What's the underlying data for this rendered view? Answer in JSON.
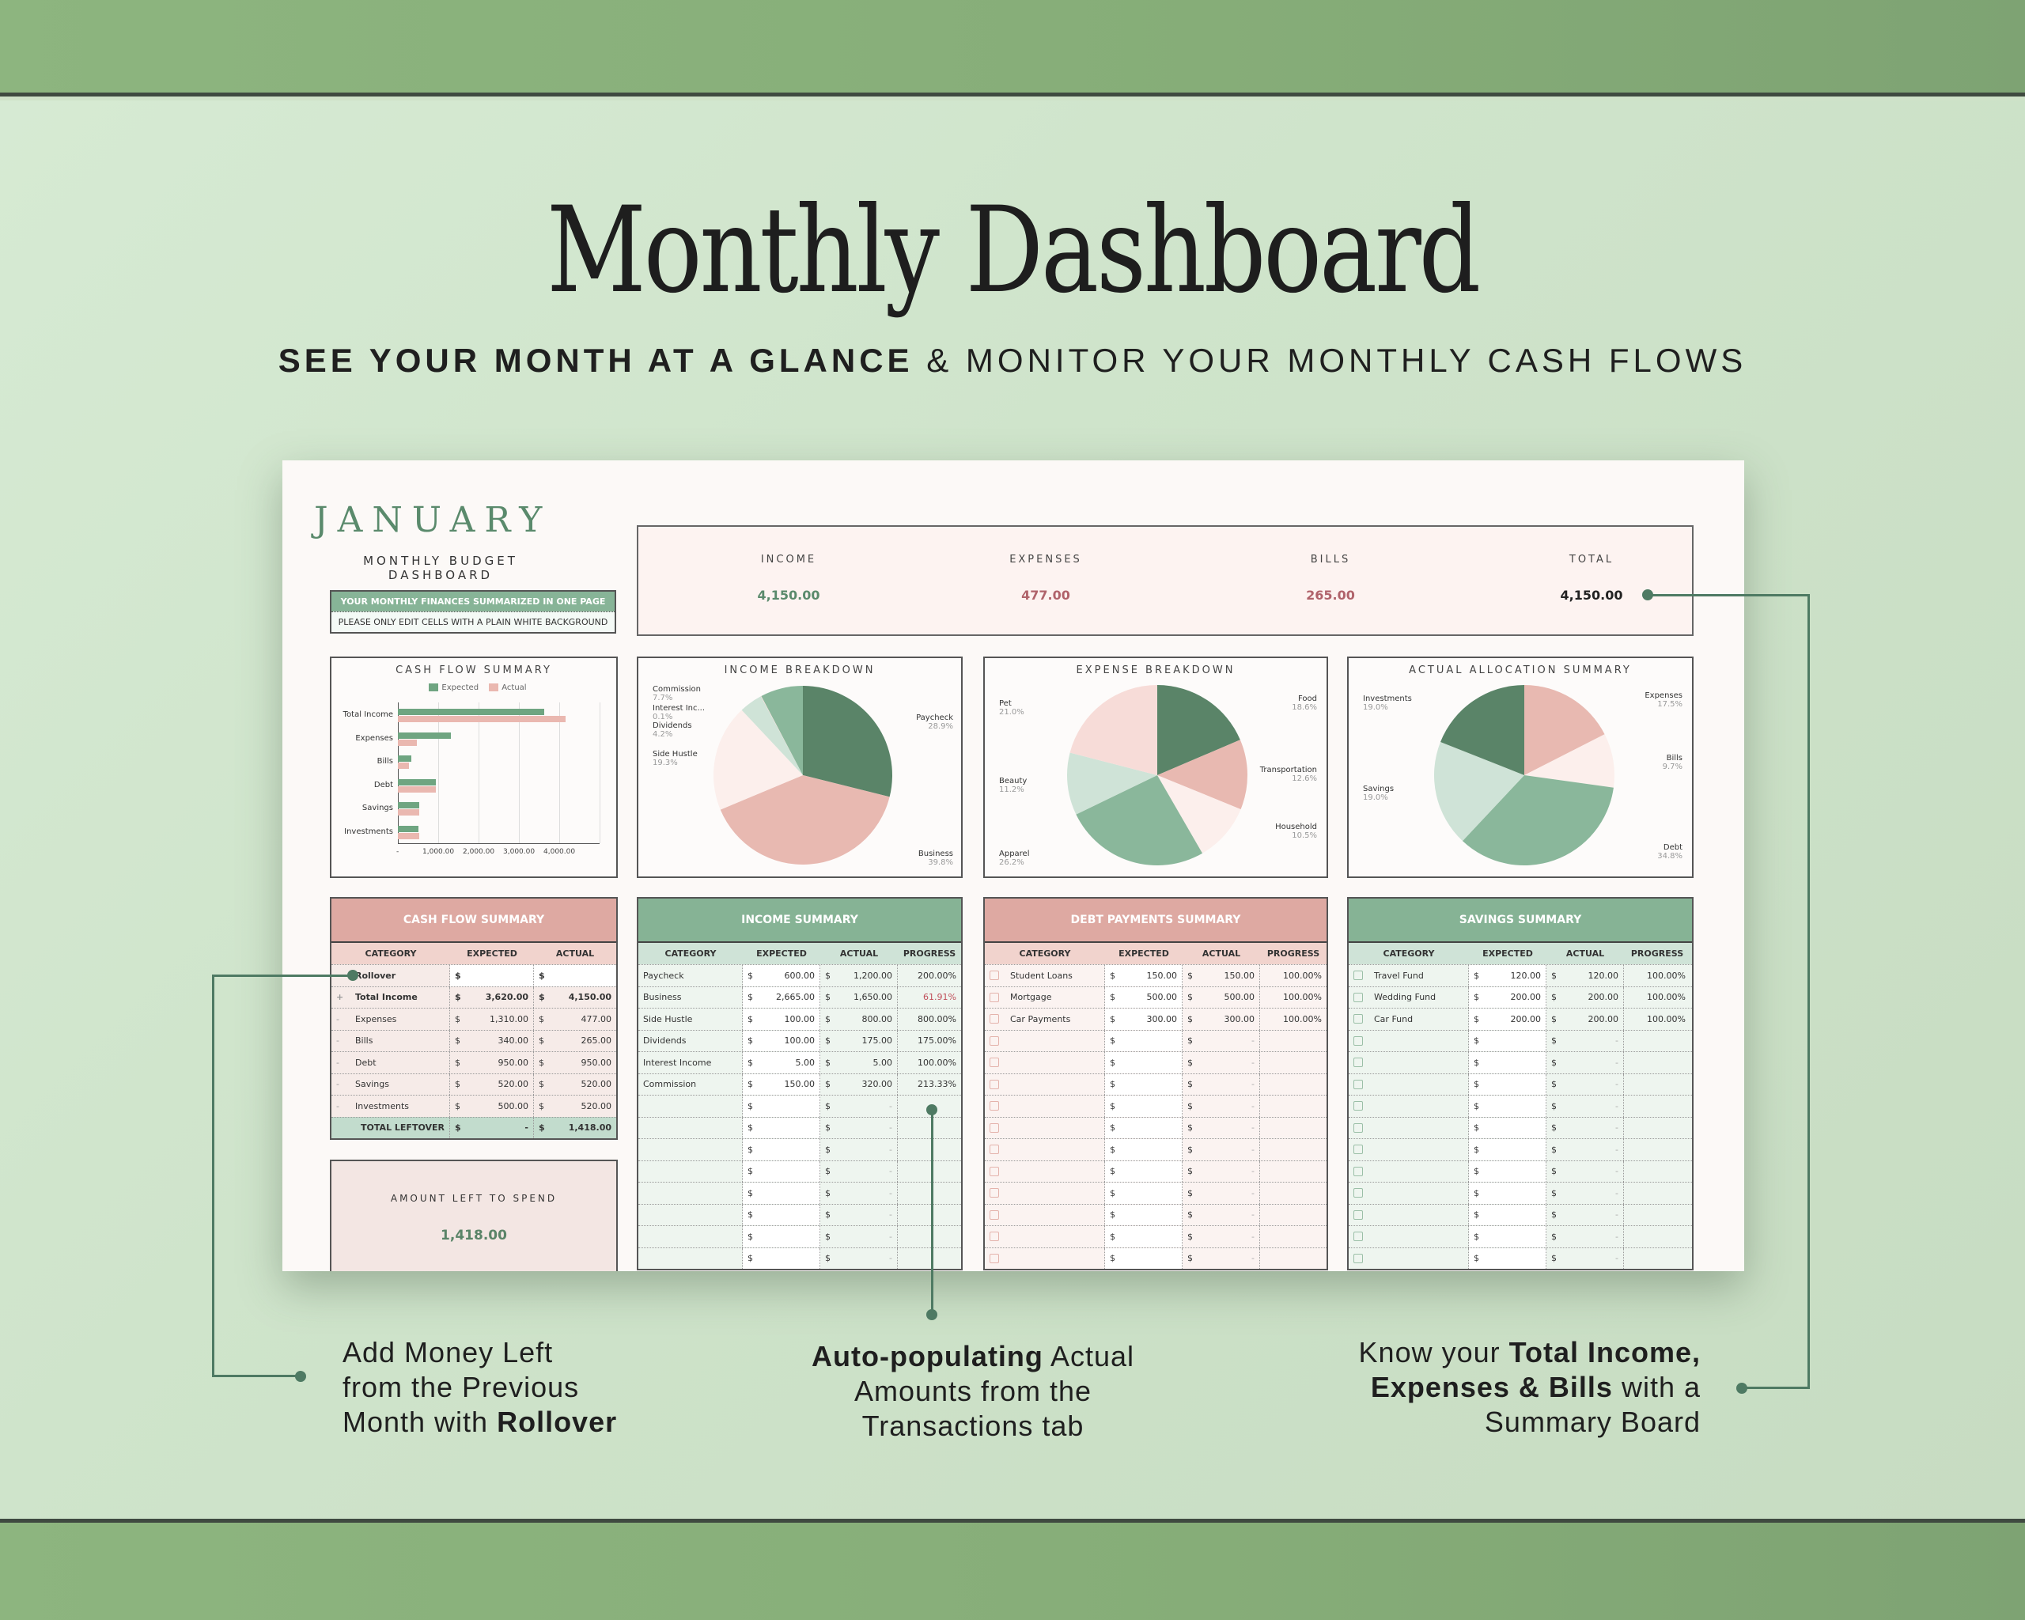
{
  "hero": {
    "title": "Monthly Dashboard",
    "subtitle_bold": "SEE YOUR MONTH AT A GLANCE",
    "subtitle_rest": " & MONITOR YOUR MONTHLY CASH FLOWS"
  },
  "sheet": {
    "month": "JANUARY",
    "month_subtitle": "MONTHLY BUDGET DASHBOARD",
    "note_1": "YOUR MONTHLY FINANCES SUMMARIZED IN ONE PAGE",
    "note_2": "PLEASE ONLY EDIT CELLS WITH A PLAIN WHITE BACKGROUND",
    "kpis": [
      {
        "label": "INCOME",
        "value": "4,150.00",
        "color": "#5a8a6c"
      },
      {
        "label": "EXPENSES",
        "value": "477.00",
        "color": "#b0636b"
      },
      {
        "label": "BILLS",
        "value": "265.00",
        "color": "#b0636b"
      },
      {
        "label": "TOTAL",
        "value": "4,150.00",
        "color": "#222222"
      }
    ],
    "amount_left": {
      "label": "AMOUNT LEFT TO SPEND",
      "value": "1,418.00"
    }
  },
  "colors": {
    "green_dark": "#5a8468",
    "green_mid": "#8ab79b",
    "green_light": "#cfe3d7",
    "pink_mid": "#e8b9b1",
    "pink_light": "#f7dcd8",
    "pink_pale": "#fcefec",
    "table_pink_head": "#dea9a2",
    "table_green_head": "#86b395"
  },
  "chart_data": [
    {
      "type": "bar",
      "orientation": "horizontal",
      "title": "CASH FLOW SUMMARY",
      "categories": [
        "Total Income",
        "Expenses",
        "Bills",
        "Debt",
        "Savings",
        "Investments"
      ],
      "series": [
        {
          "name": "Expected",
          "color": "#6fa581",
          "values": [
            3620,
            1310,
            340,
            950,
            520,
            500
          ]
        },
        {
          "name": "Actual",
          "color": "#eab8b0",
          "values": [
            4150,
            477,
            265,
            950,
            520,
            520
          ]
        }
      ],
      "xticks": [
        "-",
        "1,000.00",
        "2,000.00",
        "3,000.00",
        "4,000.00"
      ],
      "xlim": [
        0,
        5000
      ],
      "legend_position": "top",
      "grid": true
    },
    {
      "type": "pie",
      "title": "INCOME BREAKDOWN",
      "labels": [
        "Paycheck",
        "Business",
        "Side Hustle",
        "Dividends",
        "Interest Inc...",
        "Commission"
      ],
      "values": [
        28.9,
        39.8,
        19.3,
        4.2,
        0.1,
        7.7
      ],
      "display": [
        "28.9%",
        "39.8%",
        "19.3%",
        "4.2%",
        "0.1%",
        "7.7%"
      ],
      "colors": [
        "#5a8468",
        "#e8b9b1",
        "#fcefec",
        "#cfe3d7",
        "#f7dcd8",
        "#8ab79b"
      ]
    },
    {
      "type": "pie",
      "title": "EXPENSE BREAKDOWN",
      "labels": [
        "Food",
        "Transportation",
        "Household",
        "Apparel",
        "Beauty",
        "Pet"
      ],
      "values": [
        18.6,
        12.6,
        10.5,
        26.2,
        11.2,
        21.0
      ],
      "display": [
        "18.6%",
        "12.6%",
        "10.5%",
        "26.2%",
        "11.2%",
        "21.0%"
      ],
      "colors": [
        "#5a8468",
        "#e8b9b1",
        "#fcefec",
        "#8ab79b",
        "#cfe3d7",
        "#f7dcd8"
      ]
    },
    {
      "type": "pie",
      "title": "ACTUAL ALLOCATION SUMMARY",
      "labels": [
        "Expenses",
        "Bills",
        "Debt",
        "Savings",
        "Investments"
      ],
      "values": [
        17.5,
        9.7,
        34.8,
        19.0,
        19.0
      ],
      "display": [
        "17.5%",
        "9.7%",
        "34.8%",
        "19.0%",
        "19.0%"
      ],
      "colors": [
        "#e8b9b1",
        "#fcefec",
        "#8ab79b",
        "#cfe3d7",
        "#5a8468"
      ]
    }
  ],
  "cashflow_table": {
    "title": "CASH FLOW SUMMARY",
    "columns": [
      "CATEGORY",
      "EXPECTED",
      "ACTUAL"
    ],
    "rows": [
      {
        "sign": "",
        "category": "Rollover",
        "expected": "",
        "actual": "",
        "bold": true
      },
      {
        "sign": "+",
        "category": "Total Income",
        "expected": "3,620.00",
        "actual": "4,150.00",
        "bold": true
      },
      {
        "sign": "-",
        "category": "Expenses",
        "expected": "1,310.00",
        "actual": "477.00"
      },
      {
        "sign": "-",
        "category": "Bills",
        "expected": "340.00",
        "actual": "265.00"
      },
      {
        "sign": "-",
        "category": "Debt",
        "expected": "950.00",
        "actual": "950.00"
      },
      {
        "sign": "-",
        "category": "Savings",
        "expected": "520.00",
        "actual": "520.00"
      },
      {
        "sign": "-",
        "category": "Investments",
        "expected": "500.00",
        "actual": "520.00"
      }
    ],
    "total": {
      "label": "TOTAL LEFTOVER",
      "expected": "-",
      "actual": "1,418.00"
    },
    "currency": "$"
  },
  "income_table": {
    "title": "INCOME SUMMARY",
    "columns": [
      "CATEGORY",
      "EXPECTED",
      "ACTUAL",
      "PROGRESS"
    ],
    "rows": [
      {
        "category": "Paycheck",
        "expected": "600.00",
        "actual": "1,200.00",
        "progress": "200.00%"
      },
      {
        "category": "Business",
        "expected": "2,665.00",
        "actual": "1,650.00",
        "progress": "61.91%",
        "warn": true
      },
      {
        "category": "Side Hustle",
        "expected": "100.00",
        "actual": "800.00",
        "progress": "800.00%"
      },
      {
        "category": "Dividends",
        "expected": "100.00",
        "actual": "175.00",
        "progress": "175.00%"
      },
      {
        "category": "Interest Income",
        "expected": "5.00",
        "actual": "5.00",
        "progress": "100.00%"
      },
      {
        "category": "Commission",
        "expected": "150.00",
        "actual": "320.00",
        "progress": "213.33%"
      }
    ],
    "empty_rows": 8
  },
  "debt_table": {
    "title": "DEBT PAYMENTS SUMMARY",
    "columns": [
      "CATEGORY",
      "EXPECTED",
      "ACTUAL",
      "PROGRESS"
    ],
    "rows": [
      {
        "category": "Student Loans",
        "expected": "150.00",
        "actual": "150.00",
        "progress": "100.00%"
      },
      {
        "category": "Mortgage",
        "expected": "500.00",
        "actual": "500.00",
        "progress": "100.00%"
      },
      {
        "category": "Car Payments",
        "expected": "300.00",
        "actual": "300.00",
        "progress": "100.00%"
      }
    ],
    "empty_rows": 11
  },
  "savings_table": {
    "title": "SAVINGS SUMMARY",
    "columns": [
      "CATEGORY",
      "EXPECTED",
      "ACTUAL",
      "PROGRESS"
    ],
    "rows": [
      {
        "category": "Travel Fund",
        "expected": "120.00",
        "actual": "120.00",
        "progress": "100.00%"
      },
      {
        "category": "Wedding Fund",
        "expected": "200.00",
        "actual": "200.00",
        "progress": "100.00%"
      },
      {
        "category": "Car Fund",
        "expected": "200.00",
        "actual": "200.00",
        "progress": "100.00%"
      }
    ],
    "empty_rows": 11
  },
  "callouts": {
    "left": {
      "l1": "Add Money Left",
      "l2": "from the Previous",
      "l3_plain": "Month with ",
      "l3_bold": "Rollover"
    },
    "center": {
      "l1_bold": "Auto-populating",
      "l1_plain": " Actual",
      "l2": "Amounts from the",
      "l3": "Transactions tab"
    },
    "right": {
      "l1_plain": "Know your ",
      "l1_bold": "Total Income,",
      "l2_bold": "Expenses & Bills",
      "l2_plain": " with a",
      "l3": "Summary Board"
    }
  }
}
